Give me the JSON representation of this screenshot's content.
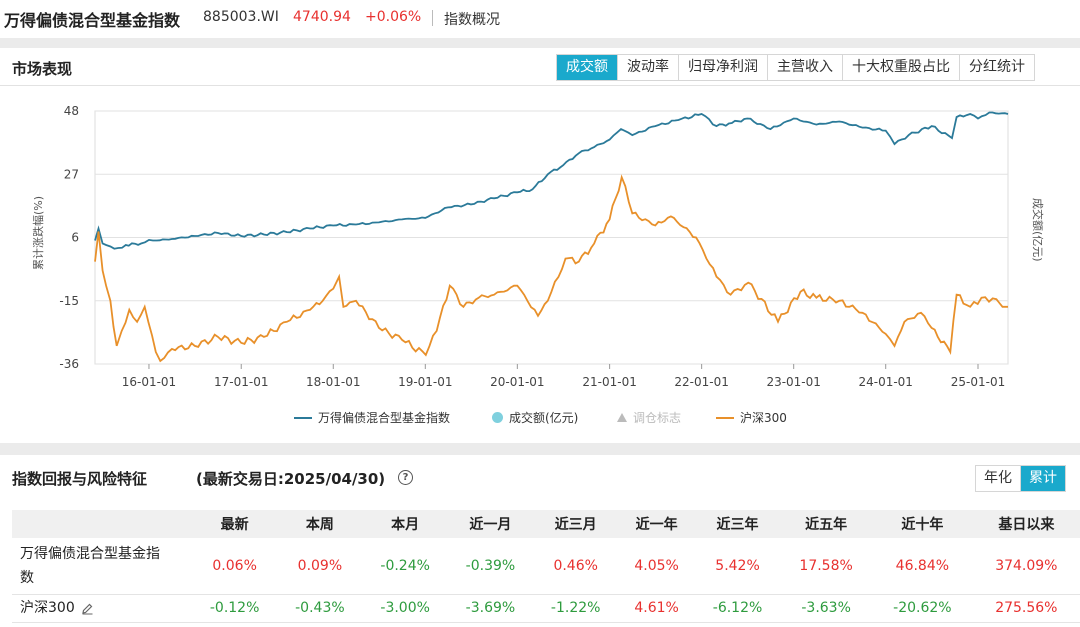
{
  "header": {
    "title": "万得偏债混合型基金指数",
    "code": "885003.WI",
    "price": "4740.94",
    "change": "+0.06%",
    "overview_link": "指数概况"
  },
  "market": {
    "title": "市场表现",
    "tabs": [
      "成交额",
      "波动率",
      "归母净利润",
      "主营收入",
      "十大权重股占比",
      "分红统计"
    ],
    "active_tab": 0
  },
  "chart_data": {
    "type": "line",
    "ylabel": "累计涨跌幅(%)",
    "y2label": "成交额(亿元)",
    "ylim": [
      -36,
      48
    ],
    "yticks": [
      "48",
      "27",
      "6",
      "-15",
      "-36"
    ],
    "xticks": [
      "16-01-01",
      "17-01-01",
      "18-01-01",
      "19-01-01",
      "20-01-01",
      "21-01-01",
      "22-01-01",
      "23-01-01",
      "24-01-01",
      "25-01-01"
    ],
    "xrange": [
      "2015-06-01",
      "2025-04-30"
    ],
    "grid": true,
    "legend_position": "bottom",
    "legend": [
      {
        "name": "万得偏债混合型基金指数",
        "type": "line",
        "color": "#2b7a99"
      },
      {
        "name": "成交额(亿元)",
        "type": "dot",
        "color": "#7fd0de"
      },
      {
        "name": "调仓标志",
        "type": "triangle",
        "color": "#bbbbbb"
      },
      {
        "name": "沪深300",
        "type": "line",
        "color": "#e8902a"
      }
    ],
    "series": [
      {
        "name": "万得偏债混合型基金指数",
        "color": "#2b7a99",
        "x": [
          "2015-06-01",
          "2015-06-15",
          "2015-07-01",
          "2015-07-15",
          "2015-08-01",
          "2015-09-01",
          "2015-10-01",
          "2015-12-01",
          "2016-01-01",
          "2016-02-01",
          "2016-04-01",
          "2016-07-01",
          "2016-10-01",
          "2017-01-01",
          "2017-04-01",
          "2017-07-01",
          "2017-10-01",
          "2018-01-01",
          "2018-04-01",
          "2018-07-01",
          "2018-10-01",
          "2019-01-01",
          "2019-04-01",
          "2019-07-01",
          "2019-10-01",
          "2020-01-01",
          "2020-03-01",
          "2020-05-01",
          "2020-07-01",
          "2020-09-01",
          "2020-11-01",
          "2021-01-01",
          "2021-02-15",
          "2021-04-01",
          "2021-07-01",
          "2021-10-01",
          "2022-01-01",
          "2022-03-01",
          "2022-05-01",
          "2022-07-01",
          "2022-10-01",
          "2023-01-01",
          "2023-04-01",
          "2023-07-01",
          "2023-10-01",
          "2024-01-01",
          "2024-02-05",
          "2024-04-01",
          "2024-07-01",
          "2024-09-20",
          "2024-10-08",
          "2024-12-01",
          "2025-01-01",
          "2025-02-15",
          "2025-04-30"
        ],
        "values": [
          5.0,
          9.0,
          4.0,
          3.5,
          3.0,
          2.5,
          3.5,
          4.0,
          5.2,
          5.0,
          5.5,
          6.5,
          7.5,
          6.5,
          7.0,
          7.8,
          9.0,
          10.0,
          10.3,
          11.0,
          12.0,
          12.5,
          16.0,
          17.0,
          19.0,
          21.0,
          22.0,
          27.0,
          30.0,
          34.0,
          36.0,
          38.5,
          42.0,
          40.0,
          43.0,
          45.0,
          47.0,
          43.0,
          44.0,
          45.5,
          42.0,
          45.5,
          43.5,
          44.5,
          42.5,
          41.5,
          37.0,
          40.0,
          43.0,
          39.0,
          46.0,
          47.0,
          45.5,
          47.5,
          47.0
        ]
      },
      {
        "name": "沪深300",
        "color": "#e8902a",
        "x": [
          "2015-06-01",
          "2015-06-15",
          "2015-07-01",
          "2015-07-15",
          "2015-08-01",
          "2015-08-26",
          "2015-09-15",
          "2015-10-15",
          "2015-11-15",
          "2015-12-15",
          "2016-01-28",
          "2016-02-15",
          "2016-04-01",
          "2016-07-01",
          "2016-10-01",
          "2017-01-01",
          "2017-04-01",
          "2017-07-01",
          "2017-10-01",
          "2017-11-20",
          "2018-01-01",
          "2018-01-24",
          "2018-02-10",
          "2018-04-01",
          "2018-07-01",
          "2018-10-01",
          "2019-01-03",
          "2019-02-15",
          "2019-04-08",
          "2019-06-01",
          "2019-08-01",
          "2019-10-01",
          "2020-01-01",
          "2020-03-23",
          "2020-05-01",
          "2020-07-10",
          "2020-09-01",
          "2020-11-01",
          "2021-01-01",
          "2021-02-18",
          "2021-04-01",
          "2021-07-01",
          "2021-09-01",
          "2021-12-10",
          "2022-03-01",
          "2022-04-26",
          "2022-07-05",
          "2022-10-31",
          "2023-01-28",
          "2023-04-01",
          "2023-07-01",
          "2023-10-01",
          "2024-01-01",
          "2024-02-05",
          "2024-03-15",
          "2024-05-20",
          "2024-07-01",
          "2024-09-13",
          "2024-10-08",
          "2024-12-01",
          "2025-01-15",
          "2025-03-15",
          "2025-04-08",
          "2025-04-30"
        ],
        "values": [
          -2.0,
          8.0,
          -5.0,
          -10.0,
          -15.0,
          -30.0,
          -25.0,
          -18.0,
          -22.0,
          -17.0,
          -32.0,
          -35.0,
          -31.0,
          -30.0,
          -27.0,
          -29.0,
          -27.0,
          -22.0,
          -18.0,
          -15.0,
          -11.0,
          -7.0,
          -17.0,
          -15.0,
          -24.0,
          -28.0,
          -33.0,
          -25.0,
          -10.0,
          -17.0,
          -14.0,
          -13.0,
          -10.0,
          -20.0,
          -15.0,
          -1.0,
          -2.0,
          4.0,
          12.0,
          26.0,
          14.0,
          10.0,
          13.0,
          6.0,
          -7.0,
          -13.0,
          -9.0,
          -22.0,
          -12.0,
          -14.0,
          -15.0,
          -19.0,
          -26.0,
          -30.0,
          -22.0,
          -19.0,
          -24.0,
          -32.0,
          -13.0,
          -17.0,
          -14.0,
          -14.5,
          -17.0,
          -17.0
        ]
      }
    ],
    "volume": []
  },
  "returns": {
    "title": "指数回报与风险特征",
    "date_label": "(最新交易日:2025/04/30)",
    "help": "?",
    "toggle": [
      "年化",
      "累计"
    ],
    "active_toggle": 1,
    "columns": [
      "",
      "最新",
      "本周",
      "本月",
      "近一月",
      "近三月",
      "近一年",
      "近三年",
      "近五年",
      "近十年",
      "基日以来"
    ],
    "rows": [
      {
        "name": "万得偏债混合型基金指数",
        "values": [
          "0.06%",
          "0.09%",
          "-0.24%",
          "-0.39%",
          "0.46%",
          "4.05%",
          "5.42%",
          "17.58%",
          "46.84%",
          "374.09%"
        ]
      },
      {
        "name": "沪深300",
        "values": [
          "-0.12%",
          "-0.43%",
          "-3.00%",
          "-3.69%",
          "-1.22%",
          "4.61%",
          "-6.12%",
          "-3.63%",
          "-20.62%",
          "275.56%"
        ]
      }
    ]
  }
}
